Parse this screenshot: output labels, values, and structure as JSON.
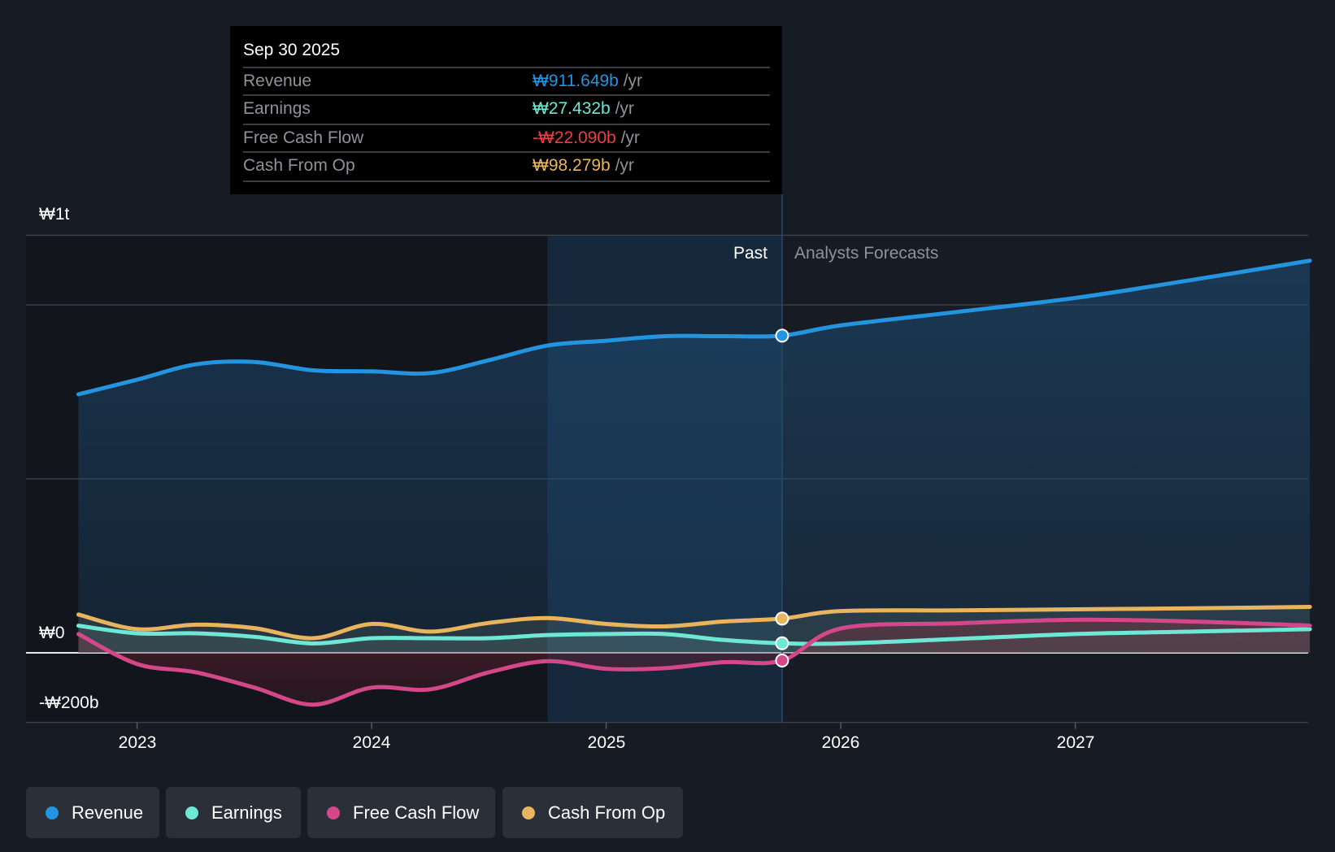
{
  "tooltip": {
    "date": "Sep 30 2025",
    "rows": [
      {
        "label": "Revenue",
        "value": "₩911.649b",
        "unit": "/yr",
        "color": "#2394df"
      },
      {
        "label": "Earnings",
        "value": "₩27.432b",
        "unit": "/yr",
        "color": "#6ee7d5"
      },
      {
        "label": "Free Cash Flow",
        "value": "-₩22.090b",
        "unit": "/yr",
        "color": "#e64141"
      },
      {
        "label": "Cash From Op",
        "value": "₩98.279b",
        "unit": "/yr",
        "color": "#e9b45e"
      }
    ]
  },
  "regions": {
    "past": "Past",
    "forecast": "Analysts Forecasts"
  },
  "chart_data": {
    "type": "line",
    "title": "",
    "xlabel": "",
    "ylabel": "",
    "ylim": [
      -200,
      1200
    ],
    "y_unit": "KRW billions",
    "y_tick_labels": [
      {
        "value": 1200,
        "label": "₩1t"
      },
      {
        "value": 0,
        "label": "₩0"
      },
      {
        "value": -200,
        "label": "-₩200b"
      }
    ],
    "gridlines": [
      1200,
      1000,
      500,
      0,
      -200
    ],
    "x_ticks": [
      2023,
      2024,
      2025,
      2026,
      2027
    ],
    "x_range": [
      2022.75,
      2028.0
    ],
    "past_highlight": [
      2024.75,
      2025.75
    ],
    "divider": 2025.75,
    "series": [
      {
        "name": "Revenue",
        "color": "#2394df",
        "area": true,
        "x": [
          2022.75,
          2023.0,
          2023.25,
          2023.5,
          2023.75,
          2024.0,
          2024.25,
          2024.5,
          2024.75,
          2025.0,
          2025.25,
          2025.5,
          2025.75,
          2026.0,
          2026.5,
          2027.0,
          2027.5,
          2028.0
        ],
        "values": [
          743,
          785,
          829,
          836,
          812,
          809,
          804,
          841,
          883,
          897,
          910,
          910,
          911.6,
          941,
          980,
          1020,
          1072,
          1127
        ]
      },
      {
        "name": "Earnings",
        "color": "#6ee7d5",
        "area": false,
        "x": [
          2022.75,
          2023.0,
          2023.25,
          2023.5,
          2023.75,
          2024.0,
          2024.25,
          2024.5,
          2024.75,
          2025.0,
          2025.25,
          2025.5,
          2025.75,
          2026.0,
          2026.5,
          2027.0,
          2027.5,
          2028.0
        ],
        "values": [
          78,
          56,
          56,
          46,
          27,
          42,
          42,
          42,
          51,
          54,
          54,
          37,
          27.4,
          27,
          40,
          54,
          61,
          68
        ]
      },
      {
        "name": "Free Cash Flow",
        "color": "#d4488a",
        "area": false,
        "x": [
          2022.75,
          2023.0,
          2023.25,
          2023.5,
          2023.75,
          2024.0,
          2024.25,
          2024.5,
          2024.75,
          2025.0,
          2025.25,
          2025.5,
          2025.75,
          2026.0,
          2026.5,
          2027.0,
          2027.5,
          2028.0
        ],
        "values": [
          54,
          -32,
          -56,
          -100,
          -149,
          -100,
          -105,
          -56,
          -24,
          -46,
          -44,
          -27,
          -22.1,
          70,
          85,
          95,
          90,
          78
        ]
      },
      {
        "name": "Cash From Op",
        "color": "#e9b45e",
        "area": false,
        "x": [
          2022.75,
          2023.0,
          2023.25,
          2023.5,
          2023.75,
          2024.0,
          2024.25,
          2024.5,
          2024.75,
          2025.0,
          2025.25,
          2025.5,
          2025.75,
          2026.0,
          2026.5,
          2027.0,
          2027.5,
          2028.0
        ],
        "values": [
          110,
          68,
          81,
          71,
          42,
          83,
          61,
          86,
          100,
          83,
          76,
          90,
          98.3,
          120,
          122,
          125,
          128,
          132
        ]
      }
    ],
    "legend": [
      "Revenue",
      "Earnings",
      "Free Cash Flow",
      "Cash From Op"
    ],
    "legend_placement": "bottom"
  }
}
